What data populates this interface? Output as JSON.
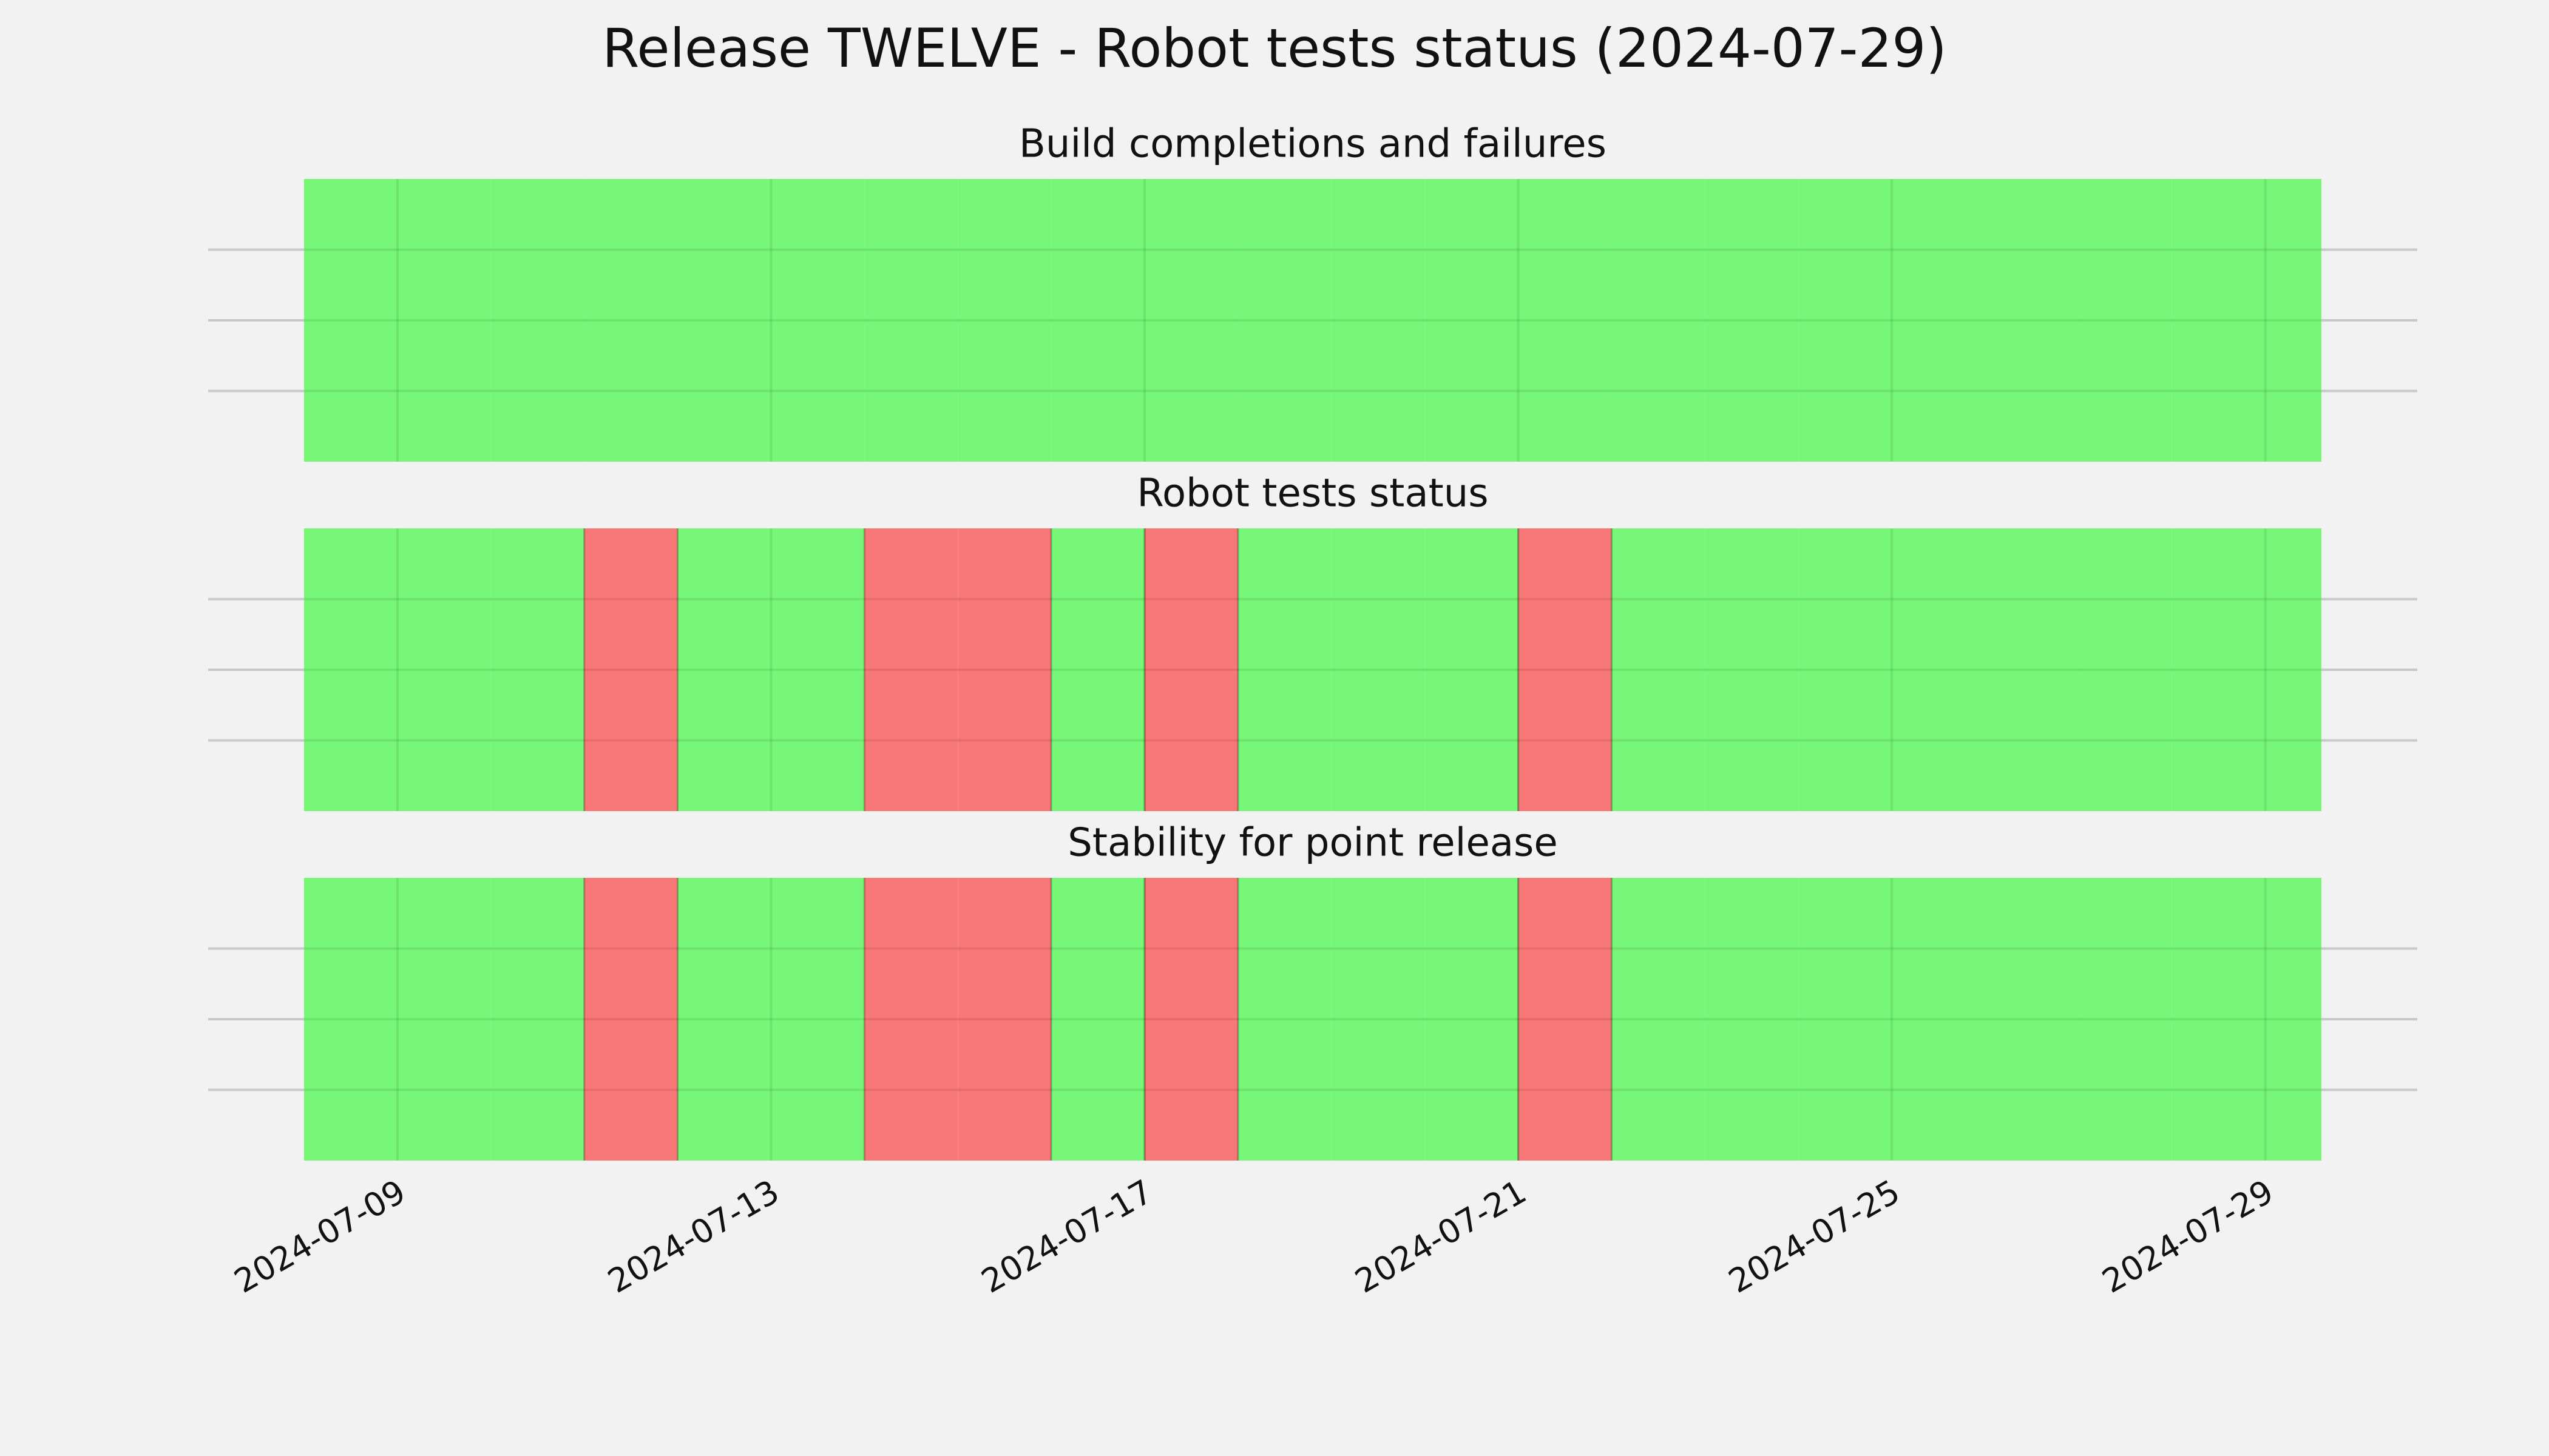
{
  "title": "Release TWELVE - Robot tests status (2024-07-29)",
  "chart_data": [
    {
      "type": "timeline",
      "title": "Build completions and failures",
      "x": [
        "2024-07-08",
        "2024-07-09",
        "2024-07-10",
        "2024-07-11",
        "2024-07-12",
        "2024-07-13",
        "2024-07-14",
        "2024-07-15",
        "2024-07-16",
        "2024-07-17",
        "2024-07-18",
        "2024-07-19",
        "2024-07-20",
        "2024-07-21",
        "2024-07-22",
        "2024-07-23",
        "2024-07-24",
        "2024-07-25",
        "2024-07-26",
        "2024-07-27",
        "2024-07-28",
        "2024-07-29"
      ],
      "values": [
        1,
        1,
        1,
        1,
        1,
        1,
        1,
        1,
        1,
        1,
        1,
        1,
        1,
        1,
        1,
        1,
        1,
        1,
        1,
        1,
        1,
        1
      ],
      "colors": [
        "#f87777",
        "#77f777"
      ],
      "xlim": [
        "2024-07-08",
        "2024-07-29T14:24"
      ],
      "xticks": [
        "2024-07-09",
        "2024-07-13",
        "2024-07-17",
        "2024-07-21",
        "2024-07-25",
        "2024-07-29"
      ],
      "ylim": [
        0,
        1
      ],
      "yticks": [
        0.25,
        0.5,
        0.75
      ],
      "grid": true
    },
    {
      "type": "timeline",
      "title": "Robot tests status",
      "x": [
        "2024-07-08",
        "2024-07-09",
        "2024-07-10",
        "2024-07-11",
        "2024-07-12",
        "2024-07-13",
        "2024-07-14",
        "2024-07-15",
        "2024-07-16",
        "2024-07-17",
        "2024-07-18",
        "2024-07-19",
        "2024-07-20",
        "2024-07-21",
        "2024-07-22",
        "2024-07-23",
        "2024-07-24",
        "2024-07-25",
        "2024-07-26",
        "2024-07-27",
        "2024-07-28",
        "2024-07-29"
      ],
      "values": [
        1,
        1,
        1,
        0,
        1,
        1,
        0,
        0,
        1,
        0,
        1,
        1,
        1,
        0,
        1,
        1,
        1,
        1,
        1,
        1,
        1,
        1
      ],
      "colors": [
        "#f87777",
        "#77f777"
      ],
      "xlim": [
        "2024-07-08",
        "2024-07-29T14:24"
      ],
      "xticks": [
        "2024-07-09",
        "2024-07-13",
        "2024-07-17",
        "2024-07-21",
        "2024-07-25",
        "2024-07-29"
      ],
      "ylim": [
        0,
        1
      ],
      "yticks": [
        0.25,
        0.5,
        0.75
      ],
      "grid": true
    },
    {
      "type": "timeline",
      "title": "Stability for point release",
      "x": [
        "2024-07-08",
        "2024-07-09",
        "2024-07-10",
        "2024-07-11",
        "2024-07-12",
        "2024-07-13",
        "2024-07-14",
        "2024-07-15",
        "2024-07-16",
        "2024-07-17",
        "2024-07-18",
        "2024-07-19",
        "2024-07-20",
        "2024-07-21",
        "2024-07-22",
        "2024-07-23",
        "2024-07-24",
        "2024-07-25",
        "2024-07-26",
        "2024-07-27",
        "2024-07-28",
        "2024-07-29"
      ],
      "values": [
        1,
        1,
        1,
        0,
        1,
        1,
        0,
        0,
        1,
        0,
        1,
        1,
        1,
        0,
        1,
        1,
        1,
        1,
        1,
        1,
        1,
        1
      ],
      "colors": [
        "#f87777",
        "#77f777"
      ],
      "xlim": [
        "2024-07-08",
        "2024-07-29T14:24"
      ],
      "xticks": [
        "2024-07-09",
        "2024-07-13",
        "2024-07-17",
        "2024-07-21",
        "2024-07-25",
        "2024-07-29"
      ],
      "ylim": [
        0,
        1
      ],
      "yticks": [
        0.25,
        0.5,
        0.75
      ],
      "grid": true
    }
  ]
}
